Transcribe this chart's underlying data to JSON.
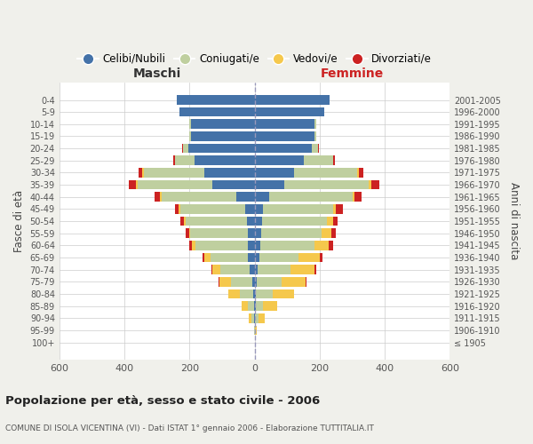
{
  "age_groups": [
    "100+",
    "95-99",
    "90-94",
    "85-89",
    "80-84",
    "75-79",
    "70-74",
    "65-69",
    "60-64",
    "55-59",
    "50-54",
    "45-49",
    "40-44",
    "35-39",
    "30-34",
    "25-29",
    "20-24",
    "15-19",
    "10-14",
    "5-9",
    "0-4"
  ],
  "birth_years": [
    "≤ 1905",
    "1906-1910",
    "1911-1915",
    "1916-1920",
    "1921-1925",
    "1926-1930",
    "1931-1935",
    "1936-1940",
    "1941-1945",
    "1946-1950",
    "1951-1955",
    "1956-1960",
    "1961-1965",
    "1966-1970",
    "1971-1975",
    "1976-1980",
    "1981-1985",
    "1986-1990",
    "1991-1995",
    "1996-2000",
    "2001-2005"
  ],
  "males": {
    "celibi": [
      0,
      0,
      2,
      3,
      5,
      8,
      15,
      20,
      22,
      22,
      23,
      28,
      55,
      130,
      155,
      185,
      205,
      195,
      195,
      230,
      240
    ],
    "coniugati": [
      0,
      2,
      8,
      18,
      40,
      65,
      90,
      115,
      160,
      175,
      190,
      200,
      230,
      230,
      185,
      60,
      15,
      5,
      5,
      0,
      0
    ],
    "vedovi": [
      0,
      1,
      8,
      20,
      35,
      35,
      25,
      20,
      10,
      5,
      5,
      5,
      5,
      5,
      5,
      0,
      0,
      0,
      0,
      0,
      0
    ],
    "divorziati": [
      0,
      0,
      0,
      0,
      0,
      2,
      2,
      5,
      8,
      10,
      10,
      12,
      18,
      22,
      12,
      5,
      2,
      0,
      0,
      0,
      0
    ]
  },
  "females": {
    "nubili": [
      0,
      0,
      2,
      3,
      5,
      7,
      10,
      15,
      18,
      20,
      22,
      25,
      45,
      90,
      120,
      150,
      175,
      185,
      185,
      215,
      230
    ],
    "coniugate": [
      0,
      2,
      10,
      22,
      50,
      75,
      100,
      120,
      165,
      185,
      200,
      215,
      255,
      260,
      195,
      90,
      20,
      5,
      5,
      0,
      0
    ],
    "vedove": [
      1,
      4,
      20,
      45,
      65,
      75,
      75,
      65,
      45,
      30,
      18,
      10,
      8,
      8,
      5,
      2,
      0,
      0,
      0,
      0,
      0
    ],
    "divorziate": [
      0,
      0,
      0,
      0,
      2,
      2,
      5,
      8,
      12,
      15,
      15,
      20,
      20,
      25,
      15,
      5,
      2,
      0,
      0,
      0,
      0
    ]
  },
  "colors": {
    "celibi": "#4472a8",
    "coniugati": "#bfcf9f",
    "vedovi": "#f5c84c",
    "divorziati": "#cc2222"
  },
  "title": "Popolazione per età, sesso e stato civile - 2006",
  "subtitle": "COMUNE DI ISOLA VICENTINA (VI) - Dati ISTAT 1° gennaio 2006 - Elaborazione TUTTITALIA.IT",
  "xlabel_left": "Maschi",
  "xlabel_right": "Femmine",
  "ylabel_left": "Fasce di età",
  "ylabel_right": "Anni di nascita",
  "xlim": 600,
  "background_color": "#f0f0eb",
  "plot_bg": "#ffffff"
}
